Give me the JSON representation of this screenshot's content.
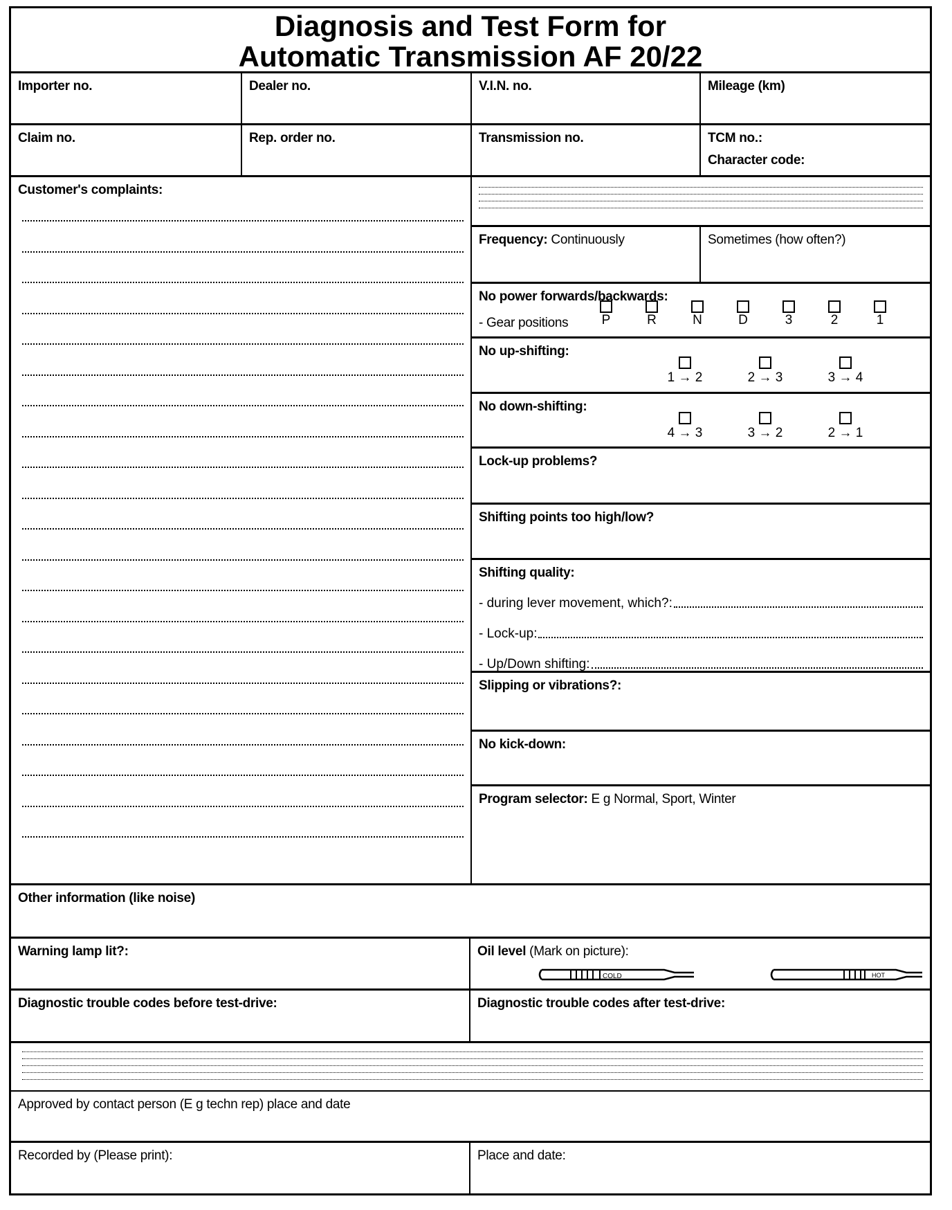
{
  "title": {
    "line1": "Diagnosis and Test Form for",
    "line2": "Automatic Transmission AF 20/22"
  },
  "header": {
    "importer": "Importer no.",
    "dealer": "Dealer no.",
    "vin": "V.I.N. no.",
    "mileage": "Mileage (km)",
    "claim": "Claim no.",
    "rep_order": "Rep. order no.",
    "transmission": "Transmission no.",
    "tcm": "TCM no.:",
    "character_code": "Character code:"
  },
  "complaints": {
    "label": "Customer's complaints:"
  },
  "frequency": {
    "label": "Frequency:",
    "continuously": "Continuously",
    "sometimes": "Sometimes (how often?)"
  },
  "no_power": {
    "label": "No power forwards/backwards:",
    "gear_label": "- Gear positions",
    "gears": [
      "P",
      "R",
      "N",
      "D",
      "3",
      "2",
      "1"
    ]
  },
  "no_upshift": {
    "label": "No up-shifting:",
    "options": [
      "1 → 2",
      "2 → 3",
      "3 → 4"
    ]
  },
  "no_downshift": {
    "label": "No down-shifting:",
    "options": [
      "4 → 3",
      "3 → 2",
      "2 → 1"
    ]
  },
  "lockup": {
    "label": "Lock-up problems?"
  },
  "shift_points": {
    "label": "Shifting points too high/low?"
  },
  "shift_quality": {
    "label": "Shifting quality:",
    "items": [
      "- during lever movement, which?:",
      "- Lock-up:",
      "- Up/Down shifting:"
    ]
  },
  "slipping": {
    "label": "Slipping or vibrations?:"
  },
  "kickdown": {
    "label": "No kick-down:"
  },
  "program": {
    "label": "Program selector:",
    "value": "E g Normal, Sport, Winter"
  },
  "other": {
    "label": "Other information (like noise)"
  },
  "warning": {
    "label": "Warning lamp lit?:"
  },
  "oil": {
    "label": "Oil level",
    "note": "(Mark on picture):",
    "cold": "COLD",
    "hot": "HOT"
  },
  "dtc": {
    "before": "Diagnostic trouble codes before test-drive:",
    "after": "Diagnostic trouble codes after test-drive:"
  },
  "approved": {
    "label": "Approved by contact person (E g techn rep) place and date"
  },
  "recorded": {
    "label": "Recorded by (Please print):"
  },
  "place": {
    "label": "Place and date:"
  }
}
